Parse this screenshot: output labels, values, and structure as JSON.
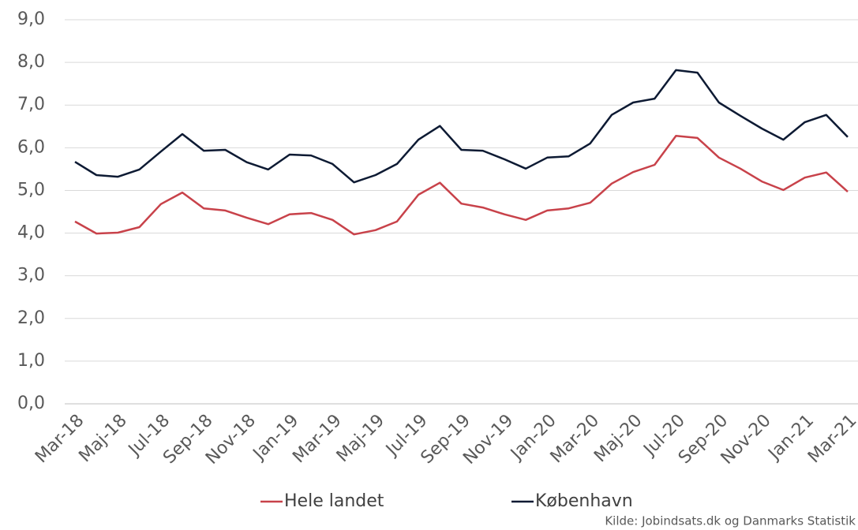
{
  "chart_data": {
    "type": "line",
    "categories": [
      "Mar-18",
      null,
      "Maj-18",
      null,
      "Jul-18",
      null,
      "Sep-18",
      null,
      "Nov-18",
      null,
      "Jan-19",
      null,
      "Mar-19",
      null,
      "Maj-19",
      null,
      "Jul-19",
      null,
      "Sep-19",
      null,
      "Nov-19",
      null,
      "Jan-20",
      null,
      "Mar-20",
      null,
      "Maj-20",
      null,
      "Jul-20",
      null,
      "Sep-20",
      null,
      "Nov-20",
      null,
      "Jan-21",
      null,
      "Mar-21"
    ],
    "series": [
      {
        "name": "Hele landet",
        "color": "#c8424a",
        "values": [
          4.27,
          3.99,
          4.01,
          4.14,
          4.68,
          4.95,
          4.58,
          4.53,
          4.36,
          4.21,
          4.44,
          4.47,
          4.31,
          3.97,
          4.07,
          4.27,
          4.9,
          5.18,
          4.69,
          4.6,
          4.44,
          4.31,
          4.53,
          4.58,
          4.71,
          5.16,
          5.43,
          5.6,
          6.28,
          6.23,
          5.77,
          5.51,
          5.21,
          5.01,
          5.3,
          5.42,
          4.97
        ]
      },
      {
        "name": "København",
        "color": "#0d1a33",
        "values": [
          5.67,
          5.36,
          5.32,
          5.49,
          5.91,
          6.32,
          5.93,
          5.95,
          5.66,
          5.49,
          5.84,
          5.82,
          5.62,
          5.19,
          5.36,
          5.62,
          6.19,
          6.51,
          5.95,
          5.93,
          5.73,
          5.51,
          5.77,
          5.8,
          6.1,
          6.77,
          7.06,
          7.15,
          7.82,
          7.76,
          7.06,
          6.75,
          6.45,
          6.19,
          6.6,
          6.77,
          6.25
        ]
      }
    ],
    "ylim": [
      0,
      9
    ],
    "yticks": [
      {
        "value": 0,
        "label": "0,0"
      },
      {
        "value": 1,
        "label": "1,0"
      },
      {
        "value": 2,
        "label": "2,0"
      },
      {
        "value": 3,
        "label": "3,0"
      },
      {
        "value": 4,
        "label": "4,0"
      },
      {
        "value": 5,
        "label": "5,0"
      },
      {
        "value": 6,
        "label": "6,0"
      },
      {
        "value": 7,
        "label": "7,0"
      },
      {
        "value": 8,
        "label": "8,0"
      },
      {
        "value": 9,
        "label": "9,0"
      }
    ],
    "grid": true,
    "legend": "bottom",
    "source": "Kilde:  Jobindsats.dk og Danmarks Statistik"
  }
}
